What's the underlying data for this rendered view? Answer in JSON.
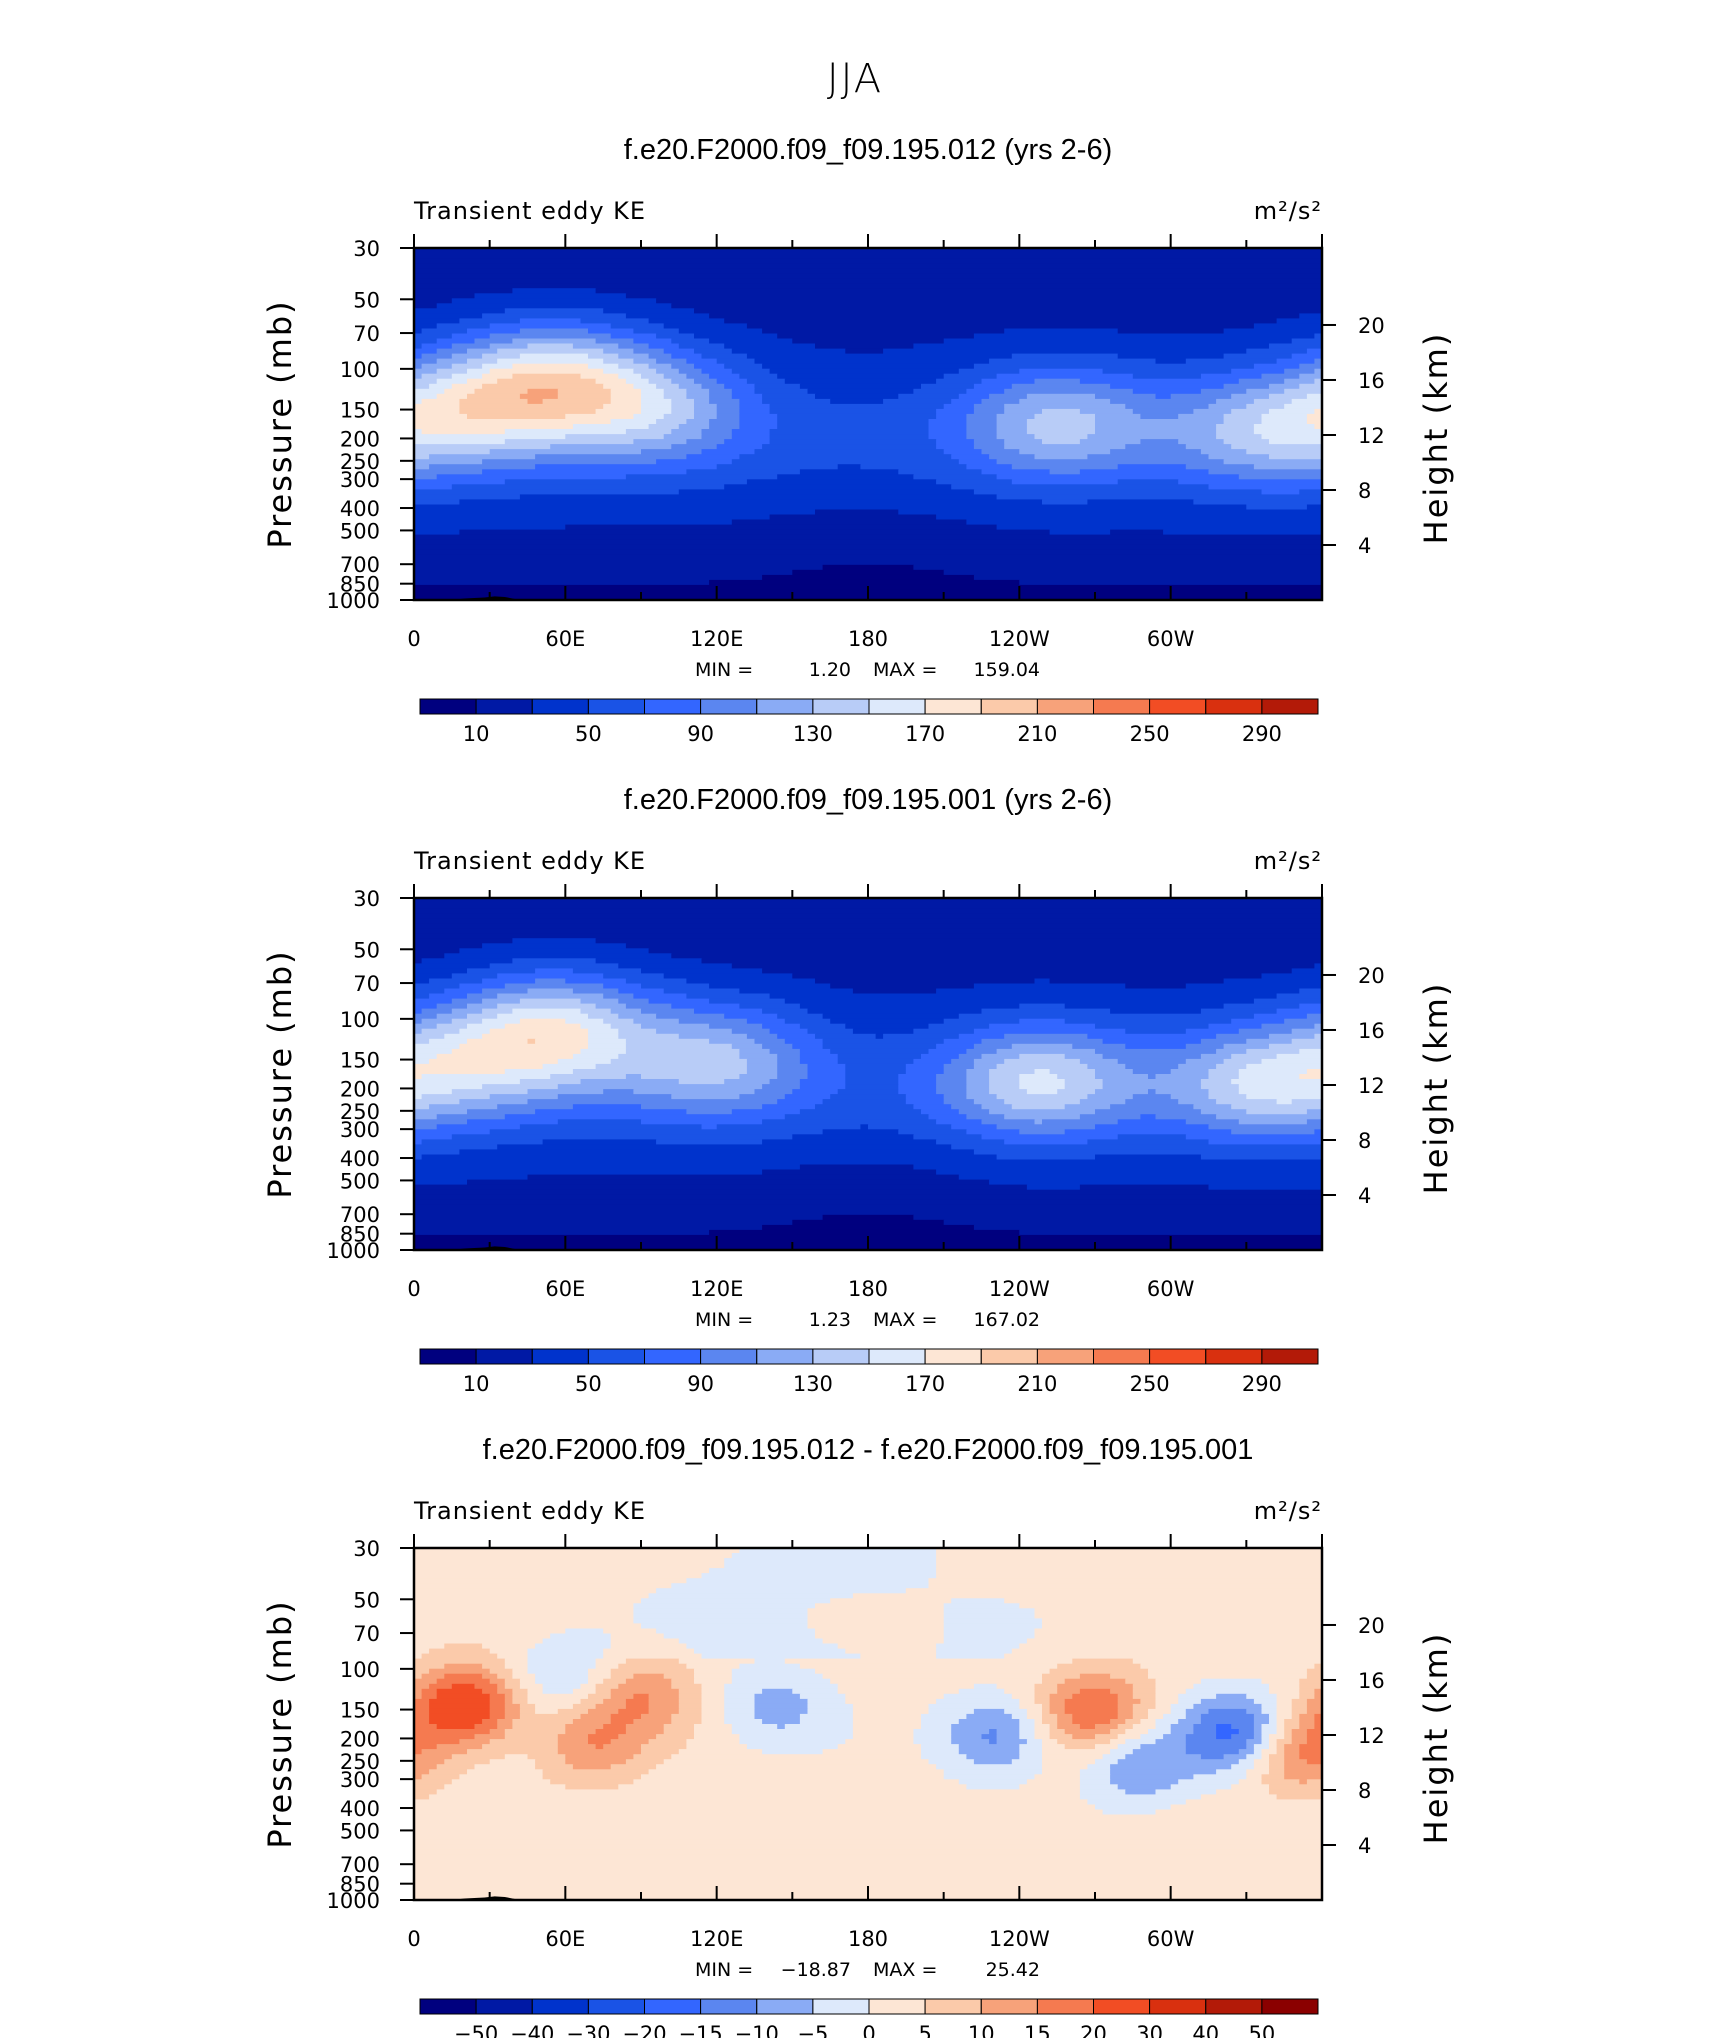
{
  "figure": {
    "season": "JJA",
    "y_left_label": "Pressure (mb)",
    "y_right_label": "Height (km)",
    "field_label": "Transient eddy KE",
    "units": "m²/s²",
    "x_tick_labels": [
      "0",
      "60E",
      "120E",
      "180",
      "120W",
      "60W"
    ],
    "p_tick_labels": [
      "30",
      "50",
      "70",
      "100",
      "150",
      "200",
      "250",
      "300",
      "400",
      "500",
      "700",
      "850",
      "1000"
    ],
    "h_tick_labels": [
      "20",
      "16",
      "12",
      "8",
      "4"
    ],
    "colors": {
      "abs_scale": [
        "#00007f",
        "#0019a5",
        "#0033cc",
        "#1a53e6",
        "#3366ff",
        "#5b86f0",
        "#8aabf5",
        "#b8ccf7",
        "#dde9fb",
        "#fde6d5",
        "#fbcaaa",
        "#f7a27a",
        "#f57a50",
        "#f24d24",
        "#d9300f",
        "#b31a08",
        "#8b0000"
      ],
      "diff_scale": [
        "#00007f",
        "#0019a5",
        "#0033cc",
        "#1a53e6",
        "#3366ff",
        "#5b86f0",
        "#8aabf5",
        "#b8ccf7",
        "#dde9fb",
        "#fde6d5",
        "#fbcaaa",
        "#f7a27a",
        "#f57a50",
        "#f24d24",
        "#d9300f",
        "#b31a08",
        "#8b0000"
      ]
    }
  },
  "chart_data": [
    {
      "type": "heatmap",
      "title": "f.e20.F2000.f09_f09.195.012 (yrs 2-6)",
      "xlabel": "",
      "ylabel": "Pressure (mb)",
      "ylabel_right": "Height (km)",
      "x_range": [
        0,
        360
      ],
      "y_range_mb": [
        1000,
        30
      ],
      "min_label": "MIN =",
      "min_value": "1.20",
      "max_label": "MAX =",
      "max_value": "159.04",
      "min": 1.2,
      "max": 159.04,
      "colorbar_labels": [
        "10",
        "50",
        "90",
        "130",
        "170",
        "210",
        "250",
        "290"
      ],
      "colorbar_levels": [
        10,
        30,
        50,
        70,
        90,
        110,
        130,
        150,
        170,
        190,
        210,
        230,
        250,
        270,
        290,
        310
      ],
      "features": [
        {
          "desc": "jet core",
          "lon": 55,
          "p": 110,
          "value": 155
        },
        {
          "desc": "jet",
          "lon": 95,
          "p": 145,
          "value": 125
        },
        {
          "desc": "jet core",
          "lon": 255,
          "p": 170,
          "value": 130
        },
        {
          "desc": "jet core",
          "lon": 335,
          "p": 185,
          "value": 120
        },
        {
          "desc": "jet",
          "lon": 20,
          "p": 150,
          "value": 130
        }
      ]
    },
    {
      "type": "heatmap",
      "title": "f.e20.F2000.f09_f09.195.001 (yrs 2-6)",
      "xlabel": "",
      "ylabel": "Pressure (mb)",
      "ylabel_right": "Height (km)",
      "x_range": [
        0,
        360
      ],
      "y_range_mb": [
        1000,
        30
      ],
      "min_label": "MIN =",
      "min_value": "1.23",
      "max_label": "MAX =",
      "max_value": "167.02",
      "min": 1.23,
      "max": 167.02,
      "colorbar_labels": [
        "10",
        "50",
        "90",
        "130",
        "170",
        "210",
        "250",
        "290"
      ],
      "colorbar_levels": [
        10,
        30,
        50,
        70,
        90,
        110,
        130,
        150,
        170,
        190,
        210,
        230,
        250,
        270,
        290,
        310
      ],
      "features": [
        {
          "desc": "jet core",
          "lon": 57,
          "p": 110,
          "value": 160
        },
        {
          "desc": "jet",
          "lon": 120,
          "p": 150,
          "value": 130
        },
        {
          "desc": "jet core",
          "lon": 248,
          "p": 185,
          "value": 145
        },
        {
          "desc": "jet core",
          "lon": 335,
          "p": 190,
          "value": 135
        },
        {
          "desc": "jet",
          "lon": 20,
          "p": 150,
          "value": 115
        }
      ]
    },
    {
      "type": "heatmap",
      "title": "f.e20.F2000.f09_f09.195.012 - f.e20.F2000.f09_f09.195.001",
      "xlabel": "",
      "ylabel": "Pressure (mb)",
      "ylabel_right": "Height (km)",
      "x_range": [
        0,
        360
      ],
      "y_range_mb": [
        1000,
        30
      ],
      "min_label": "MIN =",
      "min_value": "−18.87",
      "max_label": "MAX =",
      "max_value": "25.42",
      "min": -18.87,
      "max": 25.42,
      "colorbar_labels": [
        "−50",
        "−40",
        "−30",
        "−20",
        "−15",
        "−10",
        "−5",
        "0",
        "5",
        "10",
        "15",
        "20",
        "30",
        "40",
        "50"
      ],
      "colorbar_levels": [
        -50,
        -40,
        -30,
        -20,
        -15,
        -10,
        -5,
        0,
        5,
        10,
        15,
        20,
        30,
        40,
        50
      ],
      "features": [
        {
          "desc": "positive max",
          "lon": 20,
          "p": 145,
          "value": 25
        },
        {
          "desc": "positive",
          "lon": 90,
          "p": 130,
          "value": 12
        },
        {
          "desc": "positive",
          "lon": 70,
          "p": 210,
          "value": 12
        },
        {
          "desc": "positive",
          "lon": 270,
          "p": 150,
          "value": 18
        },
        {
          "desc": "positive",
          "lon": 350,
          "p": 230,
          "value": 15
        },
        {
          "desc": "negative",
          "lon": 60,
          "p": 105,
          "value": -8
        },
        {
          "desc": "negative",
          "lon": 143,
          "p": 145,
          "value": -9
        },
        {
          "desc": "negative",
          "lon": 230,
          "p": 195,
          "value": -14
        },
        {
          "desc": "negative",
          "lon": 288,
          "p": 265,
          "value": -12
        },
        {
          "desc": "negative",
          "lon": 326,
          "p": 190,
          "value": -19
        }
      ]
    }
  ]
}
